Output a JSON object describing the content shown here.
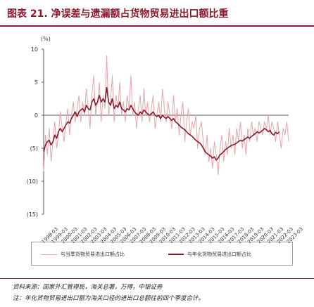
{
  "figure": {
    "title": "图表 21. 净误差与遗漏额占货物贸易进出口额比重",
    "source": "资料来源：国家外汇管理局，海关总署，万得，中银证券",
    "note": "注：年化货物贸易进出口额为海关口径的进出口总额往前四个季度合计。"
  },
  "chart_data": {
    "type": "line",
    "unit_label": "(%)",
    "ylim": [
      -15,
      10
    ],
    "yticks": [
      10,
      5,
      0,
      -5,
      -10,
      -15
    ],
    "ytick_labels": [
      "10",
      "5",
      "0",
      "(5)",
      "(10)",
      "(15)"
    ],
    "x_tick_labels": [
      "1998-03",
      "1999-03",
      "2000-03",
      "2001-03",
      "2002-03",
      "2003-03",
      "2004-03",
      "2005-03",
      "2006-03",
      "2007-03",
      "2008-03",
      "2009-03",
      "2010-03",
      "2011-03",
      "2012-03",
      "2013-03",
      "2014-03",
      "2015-03",
      "2016-03",
      "2017-03",
      "2018-03",
      "2019-03",
      "2020-03",
      "2021-03",
      "2022-03",
      "2023-03"
    ],
    "colors": {
      "quarterly": "#e8a4aa",
      "annualized": "#8b1a2b",
      "axis": "#555555"
    },
    "legend_position": "bottom",
    "series": [
      {
        "name": "与当季货物贸易进出口额占比",
        "style": "thin-light",
        "values": [
          -8.5,
          -3,
          -6,
          -2,
          -7,
          -4,
          -1,
          -5,
          -3,
          0.5,
          -2,
          -4,
          -1,
          1,
          -3,
          0,
          2,
          -1,
          1,
          3,
          -1,
          2,
          0,
          4,
          1,
          -2,
          3,
          6,
          0,
          2,
          5,
          -1,
          3,
          1,
          9,
          0,
          2,
          6,
          -1,
          3,
          1,
          5,
          0,
          2,
          -1,
          3,
          1,
          6,
          0,
          2,
          -2,
          1,
          3,
          -1,
          4,
          0,
          2,
          -1,
          1,
          3,
          -2,
          0,
          2,
          -1,
          4,
          1,
          -1,
          2,
          0,
          -2,
          3,
          -1,
          1,
          -3,
          0,
          2,
          -4,
          -1,
          1,
          -3,
          -1,
          -2,
          0,
          -5,
          -2,
          -1,
          -4,
          -6,
          -3,
          -7,
          -5,
          -8,
          -4,
          -6,
          -9,
          -5,
          -3,
          -7,
          -4,
          -6,
          -2,
          -5,
          -3,
          -6,
          -2,
          -4,
          -1,
          -5,
          -3,
          -6,
          -2,
          -4,
          -1,
          -3,
          -2,
          -4,
          -1,
          -2,
          -3,
          -1,
          -2,
          0,
          -3,
          -1,
          -2,
          -4,
          -1,
          -3,
          -5,
          -2,
          -3,
          -1,
          -4
        ]
      },
      {
        "name": "与年化货物贸易进出口额占比",
        "style": "thick-dark",
        "values": [
          -5.5,
          -4.5,
          -4,
          -3.8,
          -4.5,
          -4,
          -3,
          -3.5,
          -2.5,
          -2,
          -2.5,
          -2,
          -1.5,
          -1,
          -1.2,
          -0.5,
          0,
          0.5,
          -0.2,
          0.5,
          0.8,
          1,
          0.5,
          1.5,
          1,
          0.8,
          2,
          2.5,
          1.5,
          2,
          3,
          2,
          2.5,
          2,
          4.2,
          2,
          1.5,
          2.5,
          1,
          1.5,
          1.2,
          2,
          1,
          0.8,
          0.5,
          1,
          0.8,
          1.5,
          1,
          0.5,
          0.2,
          0,
          0.5,
          0.2,
          0.8,
          0.5,
          0.2,
          0,
          0.2,
          0.5,
          0,
          -0.2,
          0,
          -0.5,
          0,
          -0.3,
          -0.5,
          -0.2,
          -0.5,
          -0.8,
          -0.5,
          -1,
          -1.2,
          -1.5,
          -1.8,
          -2,
          -2.2,
          -2.5,
          -2.8,
          -3,
          -3.2,
          -3.5,
          -3.8,
          -4,
          -4.2,
          -4.5,
          -5,
          -5.5,
          -5.8,
          -6,
          -6.2,
          -6.5,
          -6.3,
          -6.8,
          -6.5,
          -6,
          -5.8,
          -5.5,
          -5.2,
          -5,
          -4.8,
          -4.6,
          -4.5,
          -4.4,
          -4.2,
          -4,
          -3.8,
          -3.9,
          -3.7,
          -3.5,
          -3.3,
          -3.5,
          -3.2,
          -3,
          -2.8,
          -2.5,
          -2.7,
          -2.5,
          -2.3,
          -2,
          -2.2,
          -2.5,
          -2.3,
          -2.8,
          -3,
          -2.6,
          -2.8,
          -2.5
        ]
      }
    ]
  }
}
